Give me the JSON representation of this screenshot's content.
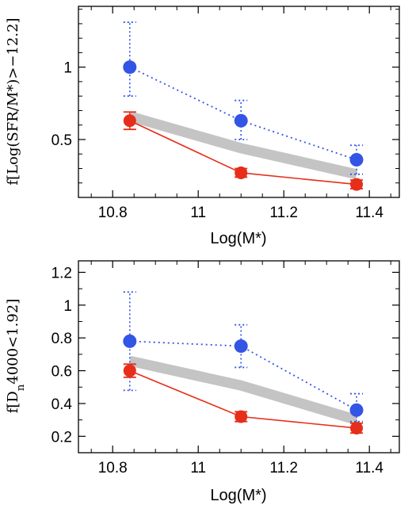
{
  "chart_data": [
    {
      "type": "line",
      "title": "",
      "xlabel": "Log(M*)",
      "ylabel": "f[Log(SFR/M*)>−12.2]",
      "xlim": [
        10.72,
        11.47
      ],
      "ylim": [
        0.1,
        1.42
      ],
      "xticks": [
        "10.8",
        "11",
        "11.2",
        "11.4"
      ],
      "yticks": [
        "0.5",
        "1"
      ],
      "grid": false,
      "x": [
        10.84,
        11.1,
        11.37
      ],
      "series": [
        {
          "color": "#3355e6",
          "line_style": "dotted",
          "values": [
            1.0,
            0.63,
            0.36
          ],
          "err_low": [
            0.2,
            0.13,
            0.1
          ],
          "err_high": [
            0.31,
            0.14,
            0.1
          ]
        },
        {
          "color": "#e62e1a",
          "line_style": "solid",
          "values": [
            0.63,
            0.27,
            0.19
          ],
          "err_low": [
            0.06,
            0.03,
            0.03
          ],
          "err_high": [
            0.06,
            0.03,
            0.03
          ]
        },
        {
          "color": "#c4c4c4",
          "line_style": "band",
          "values": [
            0.66,
            0.44,
            0.26
          ]
        }
      ]
    },
    {
      "type": "line",
      "title": "",
      "xlabel": "Log(M*)",
      "ylabel": "f[D_n4000<1.92]",
      "xlim": [
        10.72,
        11.47
      ],
      "ylim": [
        0.1,
        1.27
      ],
      "xticks": [
        "10.8",
        "11",
        "11.2",
        "11.4"
      ],
      "yticks": [
        "0.2",
        "0.4",
        "0.6",
        "0.8",
        "1",
        "1.2"
      ],
      "grid": false,
      "x": [
        10.84,
        11.1,
        11.37
      ],
      "series": [
        {
          "color": "#3355e6",
          "line_style": "dotted",
          "values": [
            0.78,
            0.75,
            0.36
          ],
          "err_low": [
            0.3,
            0.13,
            0.07
          ],
          "err_high": [
            0.3,
            0.13,
            0.1
          ]
        },
        {
          "color": "#e62e1a",
          "line_style": "solid",
          "values": [
            0.6,
            0.32,
            0.25
          ],
          "err_low": [
            0.04,
            0.03,
            0.03
          ],
          "err_high": [
            0.04,
            0.03,
            0.03
          ]
        },
        {
          "color": "#c4c4c4",
          "line_style": "band",
          "values": [
            0.66,
            0.51,
            0.3
          ]
        }
      ]
    }
  ]
}
